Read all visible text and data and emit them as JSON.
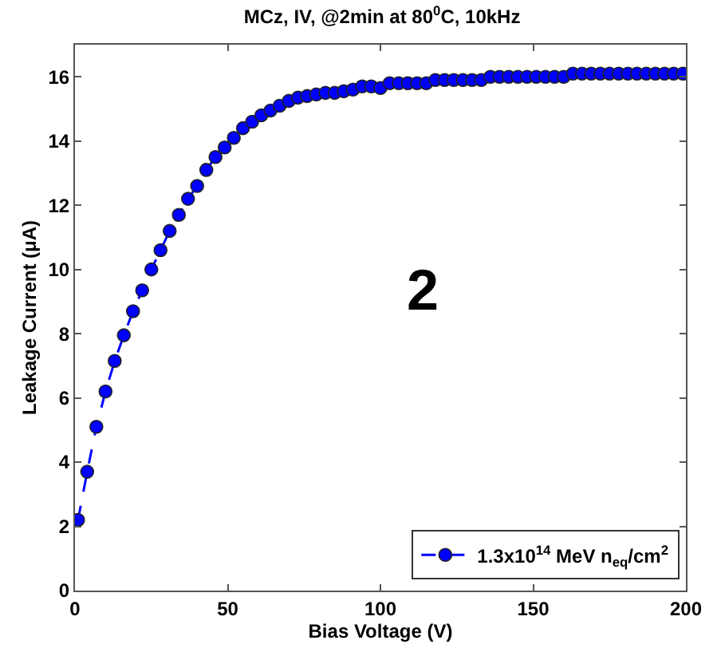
{
  "chart_data": {
    "type": "line",
    "title": "MCz, IV, @2min at 80$^{0}$C, 10kHz",
    "xlabel": "Bias Voltage (V)",
    "ylabel": "Leakage Current (μA)",
    "x": [
      1,
      4,
      7,
      10,
      13,
      16,
      19,
      22,
      25,
      28,
      31,
      34,
      37,
      40,
      43,
      46,
      49,
      52,
      55,
      58,
      61,
      64,
      67,
      70,
      73,
      76,
      79,
      82,
      85,
      88,
      91,
      94,
      97,
      100,
      103,
      106,
      109,
      112,
      115,
      118,
      121,
      124,
      127,
      130,
      133,
      136,
      139,
      142,
      145,
      148,
      151,
      154,
      157,
      160,
      163,
      166,
      169,
      172,
      175,
      178,
      181,
      184,
      187,
      190,
      193,
      196,
      199
    ],
    "series": [
      {
        "name": "1.3x10$^{14}$ MeV n$_{eq}$/cm$^{2}$",
        "color": "#0000ff",
        "values": [
          2.2,
          3.7,
          5.1,
          6.2,
          7.15,
          7.95,
          8.7,
          9.35,
          10.0,
          10.6,
          11.2,
          11.7,
          12.2,
          12.6,
          13.1,
          13.5,
          13.8,
          14.1,
          14.4,
          14.6,
          14.8,
          14.95,
          15.1,
          15.25,
          15.35,
          15.4,
          15.45,
          15.5,
          15.5,
          15.55,
          15.6,
          15.7,
          15.7,
          15.65,
          15.8,
          15.8,
          15.8,
          15.8,
          15.8,
          15.9,
          15.9,
          15.9,
          15.9,
          15.9,
          15.9,
          16.0,
          16.0,
          16.0,
          16.0,
          16.0,
          16.0,
          16.0,
          16.0,
          16.0,
          16.1,
          16.1,
          16.1,
          16.1,
          16.1,
          16.1,
          16.1,
          16.1,
          16.1,
          16.1,
          16.1,
          16.1,
          16.1
        ]
      }
    ],
    "xlim": [
      0,
      200
    ],
    "xticks": [
      0,
      50,
      100,
      150,
      200
    ],
    "ylim": [
      0,
      17
    ],
    "yticks": [
      0,
      2,
      4,
      6,
      8,
      10,
      12,
      14,
      16
    ],
    "annotations": [
      "2"
    ],
    "marker": "circle",
    "line_style": "dashed",
    "legend": "bottom right"
  }
}
